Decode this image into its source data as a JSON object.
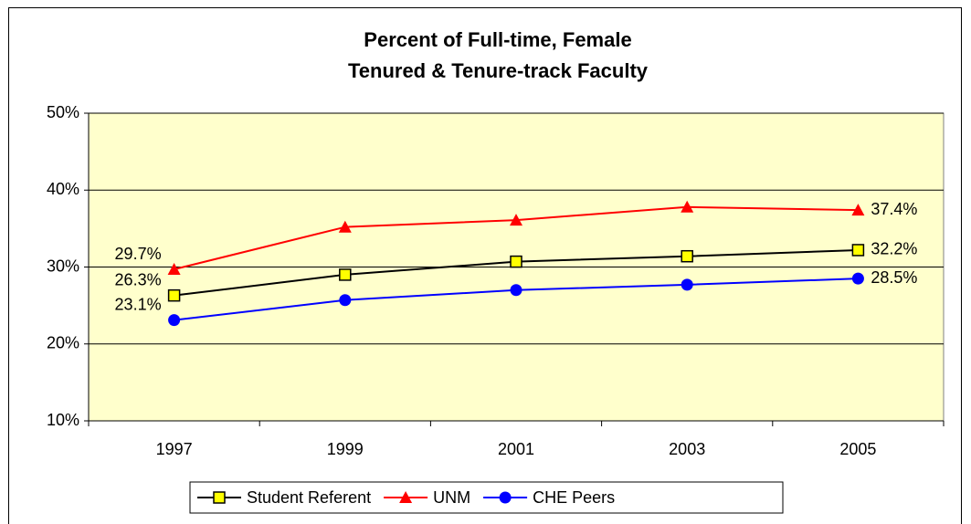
{
  "chart_data": {
    "type": "line",
    "title": [
      "Percent of Full-time, Female",
      "Tenured & Tenure-track Faculty"
    ],
    "categories": [
      "1997",
      "1999",
      "2001",
      "2003",
      "2005"
    ],
    "series": [
      {
        "name": "Student Referent",
        "color": "#000000",
        "marker": "square",
        "marker_color": "#FFFF00",
        "values": [
          26.3,
          29.0,
          30.7,
          31.4,
          32.2
        ],
        "value_labels": [
          "26.3%",
          null,
          null,
          null,
          "32.2%"
        ]
      },
      {
        "name": "UNM",
        "color": "#FF0000",
        "marker": "triangle",
        "marker_color": "#FF0000",
        "values": [
          29.7,
          35.2,
          36.1,
          37.8,
          37.4
        ],
        "value_labels": [
          "29.7%",
          null,
          null,
          null,
          "37.4%"
        ]
      },
      {
        "name": "CHE Peers",
        "color": "#0000FF",
        "marker": "circle",
        "marker_color": "#0000FF",
        "values": [
          23.1,
          25.7,
          27.0,
          27.7,
          28.5
        ],
        "value_labels": [
          "23.1%",
          null,
          null,
          null,
          "28.5%"
        ]
      }
    ],
    "ylim": [
      10,
      50
    ],
    "yticks": [
      {
        "value": 10,
        "label": "10%"
      },
      {
        "value": 20,
        "label": "20%"
      },
      {
        "value": 30,
        "label": "30%"
      },
      {
        "value": 40,
        "label": "40%"
      },
      {
        "value": 50,
        "label": "50%"
      }
    ],
    "grid": true,
    "plot_background": "#FFFFCC",
    "legend": "bottom"
  }
}
